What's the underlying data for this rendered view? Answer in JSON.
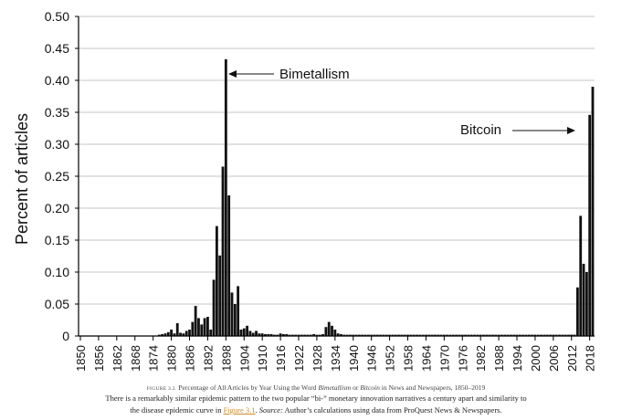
{
  "chart_data": {
    "type": "bar",
    "ylabel": "Percent of articles",
    "ylim": [
      0,
      0.5
    ],
    "yticks": [
      0.0,
      0.05,
      0.1,
      0.15,
      0.2,
      0.25,
      0.3,
      0.35,
      0.4,
      0.45,
      0.5
    ],
    "ytick_labels": [
      "0",
      "0.05",
      "0.10",
      "0.15",
      "0.20",
      "0.25",
      "0.30",
      "0.35",
      "0.40",
      "0.45",
      "0.50"
    ],
    "xlim": [
      1850,
      2019
    ],
    "xtick_labels": [
      "1850",
      "1856",
      "1862",
      "1868",
      "1874",
      "1880",
      "1886",
      "1892",
      "1898",
      "1904",
      "1910",
      "1916",
      "1922",
      "1928",
      "1934",
      "1940",
      "1946",
      "1952",
      "1958",
      "1964",
      "1970",
      "1976",
      "1982",
      "1988",
      "1994",
      "2000",
      "2006",
      "2012",
      "2018"
    ],
    "grid": true,
    "series": [
      {
        "name": "Bimetallism",
        "years": [
          1876,
          1877,
          1878,
          1879,
          1880,
          1881,
          1882,
          1883,
          1884,
          1885,
          1886,
          1887,
          1888,
          1889,
          1890,
          1891,
          1892,
          1893,
          1894,
          1895,
          1896,
          1897,
          1898,
          1899,
          1900,
          1901,
          1902,
          1903,
          1904,
          1905,
          1906,
          1907,
          1908,
          1909,
          1910,
          1911,
          1912,
          1913,
          1914,
          1915,
          1916,
          1917,
          1918,
          1919,
          1920,
          1921,
          1922,
          1923,
          1924,
          1925,
          1926,
          1927,
          1928,
          1929,
          1930,
          1931,
          1932,
          1933,
          1934,
          1935,
          1936,
          1937,
          1938,
          1939,
          1940,
          1941,
          1942,
          1943,
          1944,
          1945,
          1946,
          1947,
          1948,
          1949,
          1950,
          1951,
          1952,
          1953,
          1954,
          1955,
          1956,
          1957,
          1958,
          1959,
          1960,
          1961,
          1962,
          1963,
          1964,
          1965,
          1966,
          1967,
          1968,
          1969,
          1970,
          1971,
          1972,
          1973,
          1974,
          1975,
          1976,
          1977,
          1978,
          1979,
          1980,
          1981,
          1982,
          1983,
          1984,
          1985,
          1986,
          1987,
          1988,
          1989,
          1990,
          1991,
          1992,
          1993,
          1994,
          1995,
          1996,
          1997,
          1998,
          1999,
          2000,
          2001,
          2002,
          2003,
          2004,
          2005,
          2006,
          2007,
          2008,
          2009,
          2010,
          2011,
          2012
        ],
        "values": [
          0.002,
          0.003,
          0.004,
          0.006,
          0.01,
          0.004,
          0.02,
          0.005,
          0.004,
          0.008,
          0.01,
          0.022,
          0.047,
          0.028,
          0.018,
          0.028,
          0.03,
          0.01,
          0.088,
          0.172,
          0.126,
          0.265,
          0.433,
          0.22,
          0.068,
          0.05,
          0.078,
          0.01,
          0.012,
          0.016,
          0.008,
          0.005,
          0.008,
          0.004,
          0.004,
          0.003,
          0.003,
          0.003,
          0.002,
          0.002,
          0.004,
          0.003,
          0.003,
          0.002,
          0.002,
          0.002,
          0.002,
          0.002,
          0.002,
          0.002,
          0.002,
          0.003,
          0.002,
          0.002,
          0.003,
          0.014,
          0.022,
          0.016,
          0.01,
          0.004,
          0.003,
          0.002,
          0.002,
          0.002,
          0.002,
          0.002,
          0.002,
          0.002,
          0.002,
          0.002,
          0.002,
          0.002,
          0.002,
          0.002,
          0.002,
          0.002,
          0.002,
          0.002,
          0.002,
          0.002,
          0.002,
          0.002,
          0.002,
          0.002,
          0.002,
          0.002,
          0.002,
          0.002,
          0.002,
          0.002,
          0.002,
          0.002,
          0.002,
          0.002,
          0.002,
          0.002,
          0.002,
          0.002,
          0.002,
          0.002,
          0.002,
          0.002,
          0.002,
          0.002,
          0.002,
          0.002,
          0.002,
          0.002,
          0.002,
          0.002,
          0.002,
          0.002,
          0.002,
          0.002,
          0.002,
          0.002,
          0.002,
          0.002,
          0.002,
          0.002,
          0.002,
          0.002,
          0.002,
          0.002,
          0.002,
          0.002,
          0.002,
          0.002,
          0.002,
          0.002,
          0.002,
          0.002,
          0.002,
          0.002,
          0.002,
          0.002,
          0.002
        ]
      },
      {
        "name": "Bitcoin",
        "years": [
          2012,
          2013,
          2014,
          2015,
          2016,
          2017,
          2018,
          2019
        ],
        "values": [
          0.002,
          0.002,
          0.076,
          0.188,
          0.113,
          0.1,
          0.346,
          0.39
        ]
      }
    ],
    "annotations": [
      {
        "text": "Bimetallism",
        "points_to_year": 1898,
        "points_to_value": 0.413
      },
      {
        "text": "Bitcoin",
        "points_to_year": 2017,
        "points_to_value": 0.322
      }
    ]
  },
  "caption": {
    "figure_number": "FIGURE 3.2.",
    "figure_title_a": " Percentage of All Articles by Year Using the Word ",
    "figure_word_1": "Bimetallism",
    "figure_title_b": " or ",
    "figure_word_2": "Bitcoin",
    "figure_title_c": " in News and Newspapers, 1850–2019",
    "line1": "There is a remarkably similar epidemic pattern to the two popular “bi-” monetary innovation narratives a century apart and similarity to",
    "line2_a": "the disease epidemic curve in ",
    "line2_link": "Figure 3.1",
    "line2_b": ". ",
    "line2_source": "Source:",
    "line2_c": " Author’s calculations using data from ProQuest News & Newspapers."
  }
}
